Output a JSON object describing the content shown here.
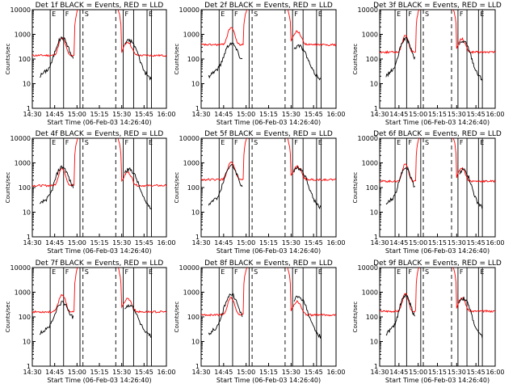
{
  "chart_data": {
    "type": "line",
    "layout": "3x3 grid",
    "ylabel": "Counts/sec",
    "y_scale": "log",
    "ylim": [
      1,
      10000
    ],
    "y_ticks": [
      "1",
      "10",
      "100",
      "1000",
      "10000"
    ],
    "x_ticks": [
      "14:30",
      "14:45",
      "15:00",
      "15:15",
      "15:30",
      "15:45",
      "16:00"
    ],
    "xlabel": "Start Time (06-Feb-03 14:26:40)",
    "series_colors": {
      "events": "#000000",
      "lld": "#ff0000"
    },
    "marker_labels": [
      "E",
      "F",
      "S",
      "F",
      "E"
    ],
    "panels": [
      {
        "title": "Det 1f BLACK = Events, RED = LLD"
      },
      {
        "title": "Det 2f BLACK = Events, RED = LLD"
      },
      {
        "title": "Det 3f BLACK = Events, RED = LLD"
      },
      {
        "title": "Det 4f BLACK = Events, RED = LLD"
      },
      {
        "title": "Det 5f BLACK = Events, RED = LLD"
      },
      {
        "title": "Det 6f BLACK = Events, RED = LLD"
      },
      {
        "title": "Det 7f BLACK = Events, RED = LLD"
      },
      {
        "title": "Det 8f BLACK = Events, RED = LLD"
      },
      {
        "title": "Det 9f BLACK = Events, RED = LLD"
      }
    ]
  }
}
